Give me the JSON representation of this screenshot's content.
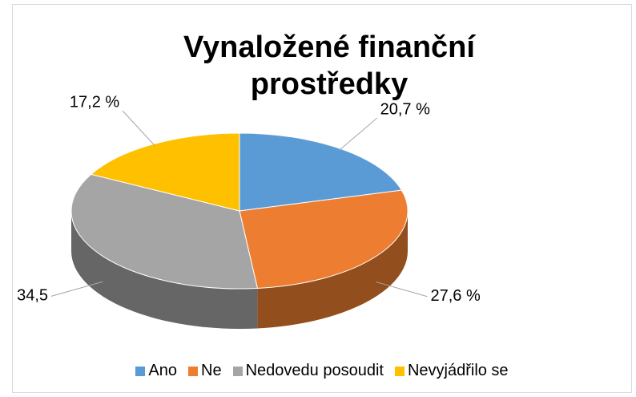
{
  "chart_data": {
    "type": "pie",
    "title": "Vynaložené finanční prostředky",
    "categories": [
      "Ano",
      "Ne",
      "Nedovedu posoudit",
      "Nevyjádřilo se"
    ],
    "values": [
      20.7,
      27.6,
      34.5,
      17.2
    ],
    "value_labels": [
      "20,7 %",
      "27,6 %",
      "34,5",
      "17,2 %"
    ],
    "colors": [
      "#5b9bd5",
      "#ed7d31",
      "#a5a5a5",
      "#ffc000"
    ],
    "legend": "bottom"
  }
}
